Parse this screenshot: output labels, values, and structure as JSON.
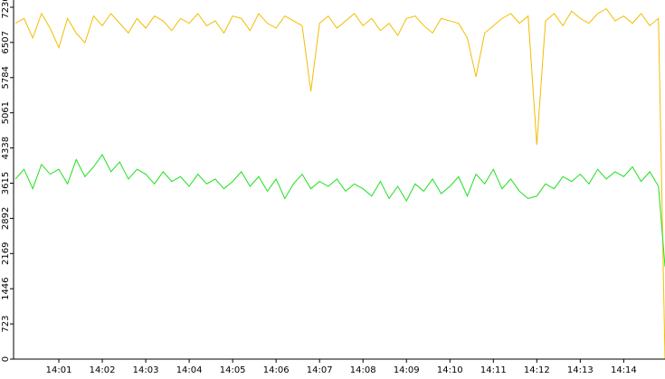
{
  "chart_data": {
    "type": "line",
    "x": [
      0,
      0.2,
      0.4,
      0.6,
      0.8,
      1.0,
      1.2,
      1.4,
      1.6,
      1.8,
      2.0,
      2.2,
      2.4,
      2.6,
      2.8,
      3.0,
      3.2,
      3.4,
      3.6,
      3.8,
      4.0,
      4.2,
      4.4,
      4.6,
      4.8,
      5.0,
      5.2,
      5.4,
      5.6,
      5.8,
      6.0,
      6.2,
      6.4,
      6.6,
      6.8,
      7.0,
      7.2,
      7.4,
      7.6,
      7.8,
      8.0,
      8.2,
      8.4,
      8.6,
      8.8,
      9.0,
      9.2,
      9.4,
      9.6,
      9.8,
      10.0,
      10.2,
      10.4,
      10.6,
      10.8,
      11.0,
      11.2,
      11.4,
      11.6,
      11.8,
      12.0,
      12.2,
      12.4,
      12.6,
      12.8,
      13.0,
      13.2,
      13.4,
      13.6,
      13.8,
      14.0,
      14.2,
      14.4,
      14.6,
      14.8,
      14.95
    ],
    "series": [
      {
        "color": "#f2bd00",
        "values": [
          6900,
          7000,
          6600,
          7100,
          6800,
          6400,
          7000,
          6700,
          6500,
          7050,
          6850,
          7100,
          6900,
          6700,
          7000,
          6800,
          7050,
          6950,
          6750,
          7000,
          6900,
          7100,
          6850,
          6950,
          6700,
          7050,
          7000,
          6750,
          7100,
          6900,
          6800,
          7050,
          6950,
          6850,
          5500,
          6900,
          7050,
          6800,
          6950,
          7100,
          6850,
          7000,
          6750,
          6900,
          6650,
          7000,
          7050,
          6850,
          6700,
          7000,
          6950,
          6900,
          6600,
          5800,
          6700,
          6850,
          7000,
          7100,
          6900,
          7050,
          4400,
          6950,
          7100,
          6850,
          7150,
          7000,
          6900,
          7100,
          7200,
          6950,
          7050,
          6900,
          7100,
          6850,
          7000,
          0
        ]
      },
      {
        "color": "#1ee01e",
        "values": [
          3700,
          3900,
          3500,
          4000,
          3800,
          3900,
          3600,
          4100,
          3750,
          3950,
          4200,
          3850,
          4050,
          3700,
          3900,
          3800,
          3600,
          3850,
          3650,
          3750,
          3550,
          3800,
          3600,
          3700,
          3500,
          3650,
          3850,
          3550,
          3750,
          3450,
          3700,
          3300,
          3600,
          3800,
          3500,
          3650,
          3550,
          3700,
          3450,
          3600,
          3500,
          3350,
          3650,
          3300,
          3550,
          3250,
          3600,
          3450,
          3700,
          3400,
          3550,
          3750,
          3350,
          3800,
          3600,
          3900,
          3500,
          3700,
          3450,
          3300,
          3350,
          3600,
          3500,
          3750,
          3650,
          3800,
          3600,
          3900,
          3700,
          3850,
          3750,
          3950,
          3650,
          3850,
          3550,
          1900
        ]
      }
    ],
    "xlim": [
      0,
      14.95
    ],
    "xticks": [
      {
        "value": 1,
        "label": "14:01"
      },
      {
        "value": 2,
        "label": "14:02"
      },
      {
        "value": 3,
        "label": "14:03"
      },
      {
        "value": 4,
        "label": "14:04"
      },
      {
        "value": 5,
        "label": "14:05"
      },
      {
        "value": 6,
        "label": "14:06"
      },
      {
        "value": 7,
        "label": "14:07"
      },
      {
        "value": 8,
        "label": "14:08"
      },
      {
        "value": 9,
        "label": "14:09"
      },
      {
        "value": 10,
        "label": "14:10"
      },
      {
        "value": 11,
        "label": "14:11"
      },
      {
        "value": 12,
        "label": "14:12"
      },
      {
        "value": 13,
        "label": "14:13"
      },
      {
        "value": 14,
        "label": "14:14"
      }
    ],
    "ylim": [
      0,
      7230
    ],
    "yticks": [
      0,
      723,
      1446,
      2169,
      2892,
      3615,
      4338,
      5061,
      5784,
      6507,
      7230
    ],
    "grid": false
  }
}
